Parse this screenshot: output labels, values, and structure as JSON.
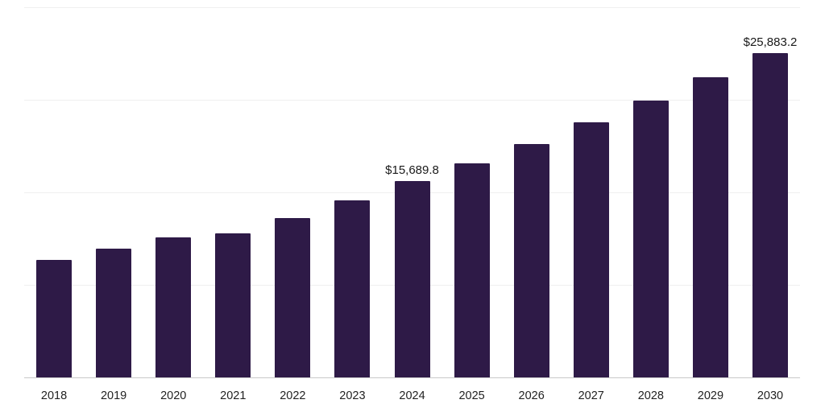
{
  "chart_data": {
    "type": "bar",
    "title": "",
    "xlabel": "",
    "ylabel": "",
    "categories": [
      "2018",
      "2019",
      "2020",
      "2021",
      "2022",
      "2023",
      "2024",
      "2025",
      "2026",
      "2027",
      "2028",
      "2029",
      "2030"
    ],
    "values": [
      9400,
      10350,
      11200,
      11550,
      12750,
      14150,
      15689.8,
      17100,
      18650,
      20400,
      22100,
      24000,
      25883.2
    ],
    "data_labels": {
      "2024": "$15,689.8",
      "2030": "$25,883.2"
    },
    "ylim": [
      0,
      29500
    ],
    "grid": true,
    "gridline_values": [
      7375,
      14750,
      22125,
      29500
    ],
    "legend_position": "none",
    "bar_color": "#2e1a47",
    "gridline_color": "#efefef",
    "axis_line_color": "#c9c9c9"
  }
}
